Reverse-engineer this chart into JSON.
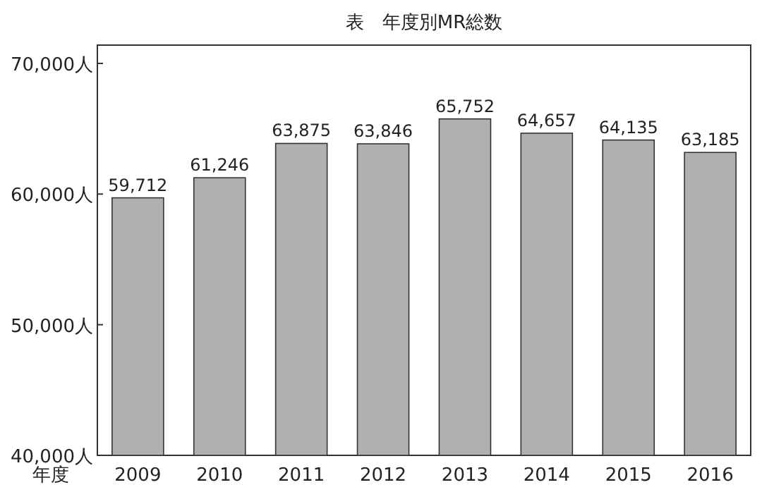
{
  "chart_data": {
    "type": "bar",
    "title": "表　年度別MR総数",
    "xlabel": "年度",
    "categories": [
      "2009",
      "2010",
      "2011",
      "2012",
      "2013",
      "2014",
      "2015",
      "2016"
    ],
    "values": [
      59712,
      61246,
      63875,
      63846,
      65752,
      64657,
      64135,
      63185
    ],
    "color": "#b0b0b0",
    "ylim": [
      40000,
      71400
    ],
    "yticks": [
      {
        "value": 40000,
        "label": "40,000人"
      },
      {
        "value": 50000,
        "label": "50,000人"
      },
      {
        "value": 60000,
        "label": "60,000人"
      },
      {
        "value": 70000,
        "label": "70,000人"
      }
    ],
    "value_labels": [
      "59,712",
      "61,246",
      "63,875",
      "63,846",
      "65,752",
      "64,657",
      "64,135",
      "63,185"
    ]
  }
}
